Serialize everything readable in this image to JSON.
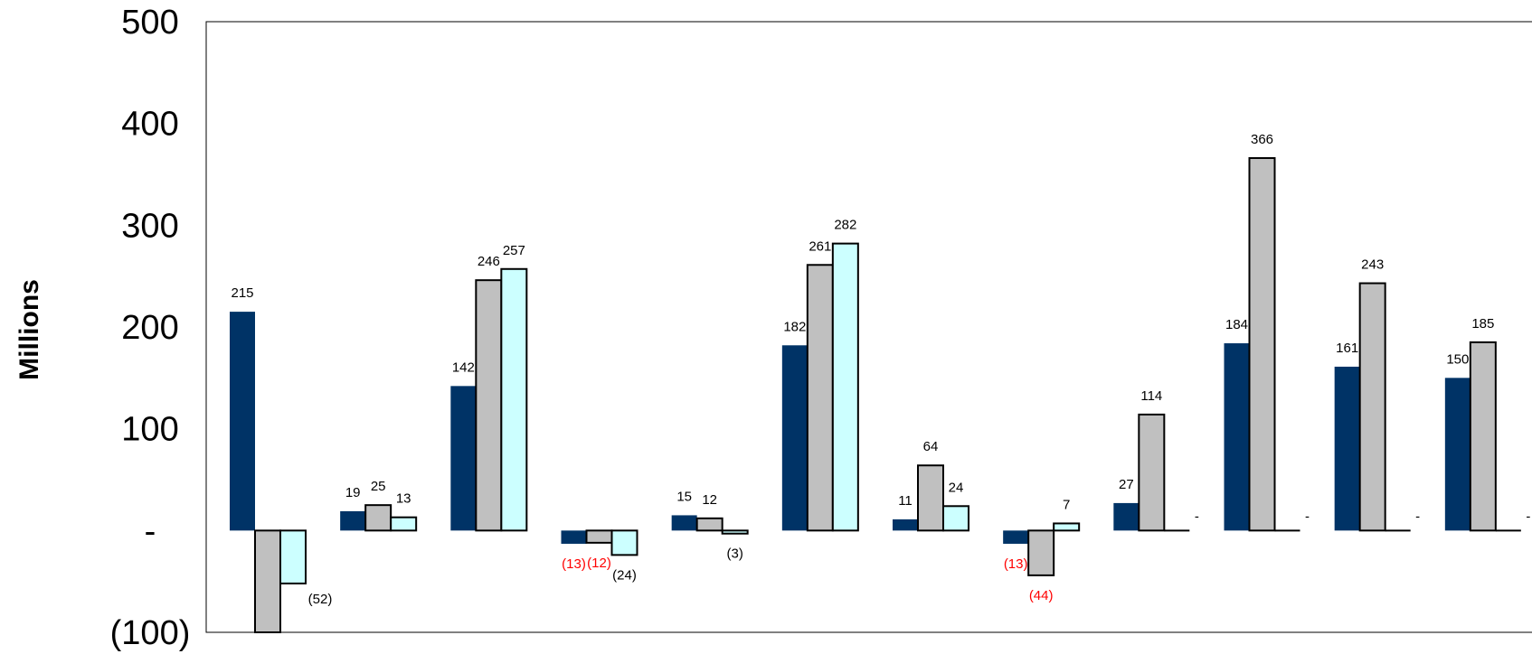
{
  "chart_data": {
    "type": "bar",
    "title": "",
    "xlabel": "",
    "ylabel": "Millions",
    "ylim": [
      -100,
      500
    ],
    "yticks": [
      {
        "value": 500,
        "label": "500"
      },
      {
        "value": 400,
        "label": "400"
      },
      {
        "value": 300,
        "label": "300"
      },
      {
        "value": 200,
        "label": "200"
      },
      {
        "value": 100,
        "label": "100"
      },
      {
        "value": 0,
        "label": "-"
      },
      {
        "value": -100,
        "label": "(100)"
      }
    ],
    "grid": false,
    "legend": "none",
    "group_count": 12,
    "colors": {
      "series1": "#003366",
      "series2": "#C0C0C0",
      "series3": "#CCFFFF",
      "outline": "#000000",
      "negative_label": "#FF0000",
      "label": "#000000"
    },
    "series": [
      {
        "values": [
          215,
          19,
          142,
          -13,
          15,
          182,
          11,
          -13,
          27,
          184,
          161,
          150
        ],
        "labels": [
          "215",
          "19",
          "142",
          "(13)",
          "15",
          "182",
          "11",
          "(13)",
          "27",
          "184",
          "161",
          "150"
        ],
        "label_red": [
          false,
          false,
          false,
          true,
          false,
          false,
          false,
          true,
          false,
          false,
          false,
          false
        ]
      },
      {
        "values": [
          -100,
          25,
          246,
          -12,
          12,
          261,
          64,
          -44,
          114,
          366,
          243,
          185
        ],
        "labels": [
          "",
          "25",
          "246",
          "(12)",
          "12",
          "261",
          "64",
          "(44)",
          "114",
          "366",
          "243",
          "185"
        ],
        "label_red": [
          false,
          false,
          false,
          true,
          false,
          false,
          false,
          true,
          false,
          false,
          false,
          false
        ]
      },
      {
        "values": [
          -52,
          13,
          257,
          -24,
          -3,
          282,
          24,
          7,
          0,
          0,
          0,
          0
        ],
        "labels": [
          "(52)",
          "13",
          "257",
          "(24)",
          "(3)",
          "282",
          "24",
          "7",
          "-",
          "-",
          "-",
          "-"
        ],
        "label_red": [
          false,
          false,
          false,
          false,
          false,
          false,
          false,
          false,
          false,
          false,
          false,
          false
        ]
      }
    ]
  }
}
